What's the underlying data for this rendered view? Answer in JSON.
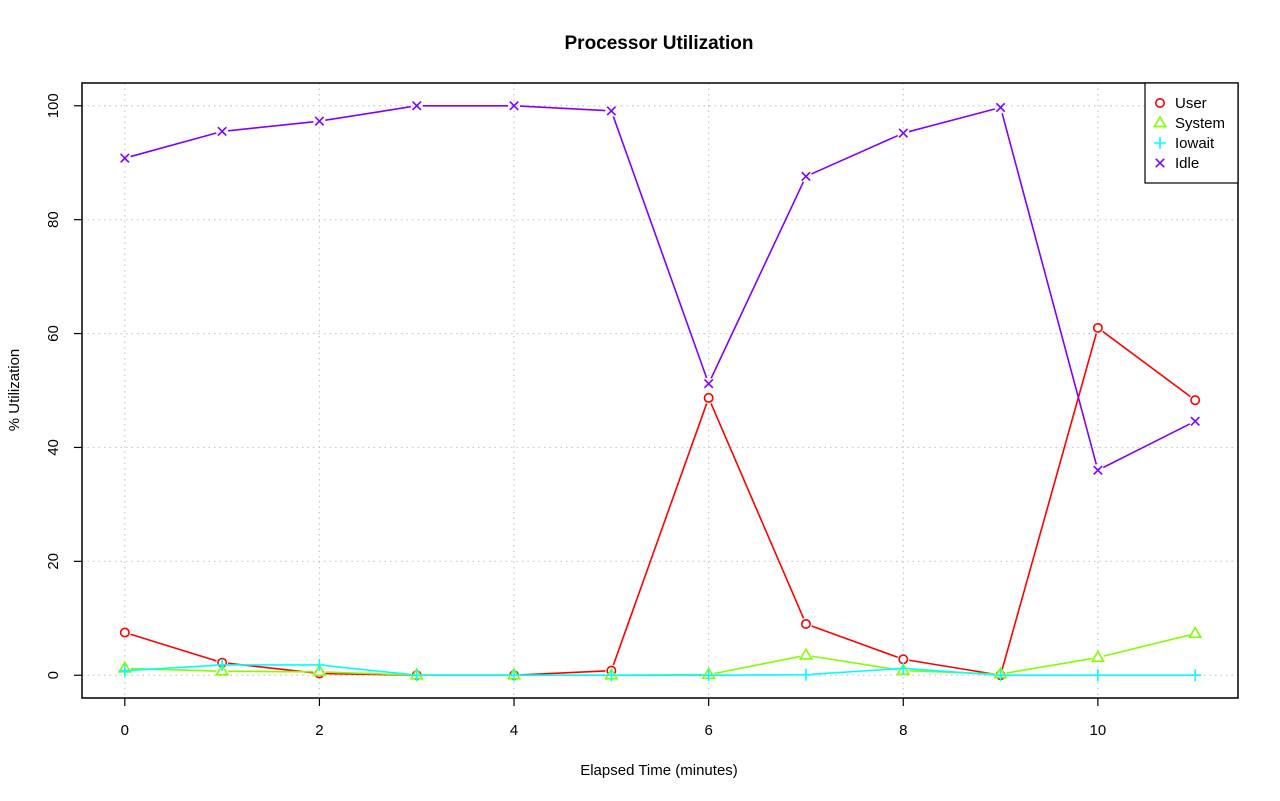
{
  "chart_data": {
    "type": "line",
    "title": "Processor Utilization",
    "xlabel": "Elapsed Time (minutes)",
    "ylabel": "% Utilization",
    "x": [
      0,
      1,
      2,
      3,
      4,
      5,
      6,
      7,
      8,
      9,
      10,
      11
    ],
    "xlim": [
      -0.44,
      11.44
    ],
    "ylim": [
      -4,
      104
    ],
    "xticks": [
      0,
      2,
      4,
      6,
      8,
      10
    ],
    "yticks": [
      0,
      20,
      40,
      60,
      80,
      100
    ],
    "grid": true,
    "legend_position": "top-right",
    "series": [
      {
        "name": "User",
        "color": "#ff0000",
        "marker": "circle",
        "values": [
          7.5,
          2.2,
          0.3,
          0.0,
          0.0,
          0.8,
          48.7,
          9.0,
          2.8,
          0.0,
          61.0,
          48.3
        ]
      },
      {
        "name": "System",
        "color": "#80ff00",
        "marker": "triangle",
        "values": [
          1.2,
          0.7,
          0.6,
          0.0,
          0.0,
          0.0,
          0.1,
          3.5,
          0.8,
          0.2,
          3.1,
          7.3
        ]
      },
      {
        "name": "Iowait",
        "color": "#00ffff",
        "marker": "plus",
        "values": [
          0.8,
          1.8,
          1.8,
          0.0,
          0.0,
          0.0,
          0.0,
          0.1,
          1.2,
          0.0,
          0.0,
          0.0
        ]
      },
      {
        "name": "Idle",
        "color": "#8000ff",
        "marker": "cross",
        "values": [
          90.8,
          95.5,
          97.3,
          100.0,
          100.0,
          99.1,
          51.2,
          87.6,
          95.2,
          99.7,
          36.0,
          44.6
        ]
      }
    ]
  }
}
